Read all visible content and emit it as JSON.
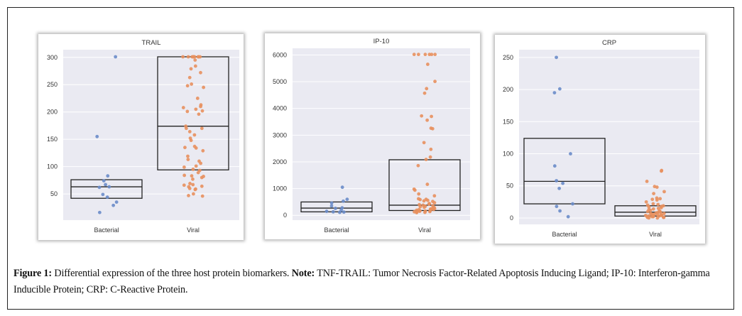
{
  "figure": {
    "caption_label": "Figure 1:",
    "caption_text": " Differential expression of the three host protein biomarkers. ",
    "note_label": "Note:",
    "note_text": " TNF-TRAIL: Tumor Necrosis Factor-Related Apoptosis Inducing Ligand; IP-10: Interferon-gamma Inducible Protein; CRP: C-Reactive Protein."
  },
  "colors": {
    "bacterial": "#6a8cc9",
    "viral": "#e8905e",
    "plot_bg": "#eaeaf2",
    "grid": "#ffffff",
    "box": "#222222"
  },
  "chart_data": [
    {
      "type": "box",
      "title": "TRAIL",
      "xlabel": "",
      "ylabel": "",
      "categories": [
        "Bacterial",
        "Viral"
      ],
      "yticks": [
        50,
        100,
        150,
        200,
        250,
        300
      ],
      "ylim": [
        2,
        314
      ],
      "grid": true,
      "boxes": [
        {
          "category": "Bacterial",
          "q1": 42,
          "median": 63,
          "q3": 76
        },
        {
          "category": "Viral",
          "q1": 94,
          "median": 174,
          "q3": 301
        }
      ],
      "series": [
        {
          "name": "Bacterial",
          "values": [
            301,
            155,
            83,
            74,
            67,
            63,
            62,
            49,
            44,
            35,
            29,
            16
          ]
        },
        {
          "name": "Viral",
          "values": [
            301,
            301,
            301,
            301,
            301,
            301,
            301,
            301,
            301,
            301,
            295,
            284,
            279,
            272,
            263,
            251,
            248,
            245,
            225,
            213,
            210,
            208,
            205,
            202,
            201,
            196,
            174,
            170,
            170,
            164,
            158,
            152,
            148,
            137,
            135,
            134,
            129,
            119,
            113,
            110,
            106,
            101,
            99,
            95,
            93,
            89,
            84,
            83,
            82,
            80,
            77,
            69,
            67,
            66,
            64,
            63,
            60,
            59,
            58,
            50,
            47,
            46
          ]
        }
      ]
    },
    {
      "type": "box",
      "title": "IP-10",
      "xlabel": "",
      "ylabel": "",
      "categories": [
        "Bacterial",
        "Viral"
      ],
      "yticks": [
        0,
        1000,
        2000,
        3000,
        4000,
        5000,
        6000
      ],
      "ylim": [
        -180,
        6250
      ],
      "grid": true,
      "boxes": [
        {
          "category": "Bacterial",
          "q1": 130,
          "median": 270,
          "q3": 500
        },
        {
          "category": "Viral",
          "q1": 180,
          "median": 380,
          "q3": 2080
        }
      ],
      "series": [
        {
          "name": "Bacterial",
          "values": [
            1050,
            600,
            530,
            460,
            350,
            280,
            260,
            200,
            150,
            130,
            120,
            110
          ]
        },
        {
          "name": "Viral",
          "values": [
            6020,
            6020,
            6020,
            6020,
            6020,
            6020,
            5650,
            5010,
            4740,
            4570,
            3720,
            3700,
            3560,
            3260,
            3240,
            2720,
            2470,
            2180,
            2090,
            1860,
            1160,
            980,
            940,
            800,
            730,
            620,
            600,
            590,
            560,
            540,
            520,
            470,
            440,
            420,
            400,
            380,
            360,
            340,
            320,
            300,
            290,
            270,
            250,
            240,
            230,
            220,
            210,
            200,
            190,
            180,
            170,
            160,
            150,
            140,
            130,
            120,
            110,
            100
          ]
        }
      ]
    },
    {
      "type": "box",
      "title": "CRP",
      "xlabel": "",
      "ylabel": "",
      "categories": [
        "Bacterial",
        "Viral"
      ],
      "yticks": [
        0,
        50,
        100,
        150,
        200,
        250
      ],
      "ylim": [
        -10,
        262
      ],
      "grid": true,
      "boxes": [
        {
          "category": "Bacterial",
          "q1": 22,
          "median": 57,
          "q3": 124
        },
        {
          "category": "Viral",
          "q1": 3,
          "median": 9,
          "q3": 19
        }
      ],
      "series": [
        {
          "name": "Bacterial",
          "values": [
            250,
            201,
            195,
            100,
            81,
            58,
            54,
            46,
            22,
            18,
            11,
            2
          ]
        },
        {
          "name": "Viral",
          "values": [
            74,
            73,
            57,
            49,
            48,
            41,
            38,
            31,
            30,
            29,
            28,
            25,
            22,
            21,
            20,
            19,
            18,
            17,
            16,
            15,
            14,
            13,
            12,
            11,
            10,
            9,
            9,
            8,
            7,
            7,
            6,
            6,
            5,
            5,
            4,
            4,
            3,
            3,
            3,
            2,
            2,
            2,
            1,
            1,
            1,
            1,
            0,
            0
          ]
        }
      ]
    }
  ]
}
